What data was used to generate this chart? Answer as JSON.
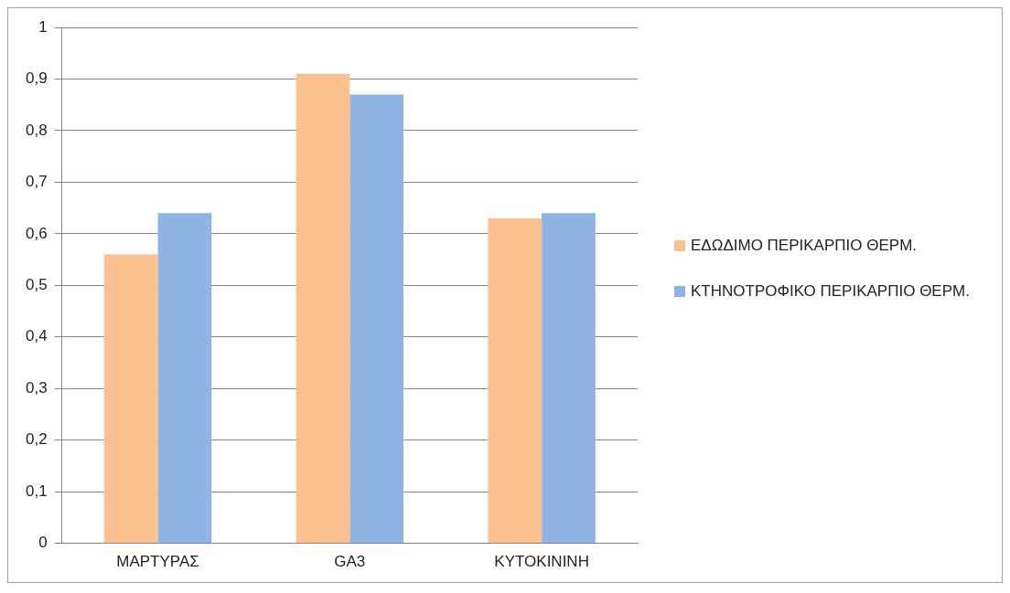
{
  "chart_data": {
    "type": "bar",
    "categories": [
      "ΜΑΡΤΥΡΑΣ",
      "GA3",
      "ΚΥΤΟΚΙΝΙΝΗ"
    ],
    "series": [
      {
        "name": "ΕΔΩΔΙΜΟ ΠΕΡΙΚΑΡΠΙΟ ΘΕΡΜ.",
        "color": "#fac090",
        "values": [
          0.56,
          0.91,
          0.63
        ]
      },
      {
        "name": "ΚΤΗΝΟΤΡΟΦΙΚΟ ΠΕΡΙΚΑΡΠΙΟ ΘΕΡΜ.",
        "color": "#8eb4e3",
        "values": [
          0.64,
          0.87,
          0.64
        ]
      }
    ],
    "ylim": [
      0,
      1
    ],
    "yticks": [
      0,
      {
        "value": 0.1,
        "label": "0,1"
      },
      {
        "value": 0.2,
        "label": "0,2"
      },
      {
        "value": 0.3,
        "label": "0,3"
      },
      {
        "value": 0.4,
        "label": "0,4"
      },
      {
        "value": 0.5,
        "label": "0,5"
      },
      {
        "value": 0.6,
        "label": "0,6"
      },
      {
        "value": 0.7,
        "label": "0,7"
      },
      {
        "value": 0.8,
        "label": "0,8"
      },
      {
        "value": 0.9,
        "label": "0,9"
      },
      1
    ],
    "grid": "y",
    "legend": "right"
  }
}
